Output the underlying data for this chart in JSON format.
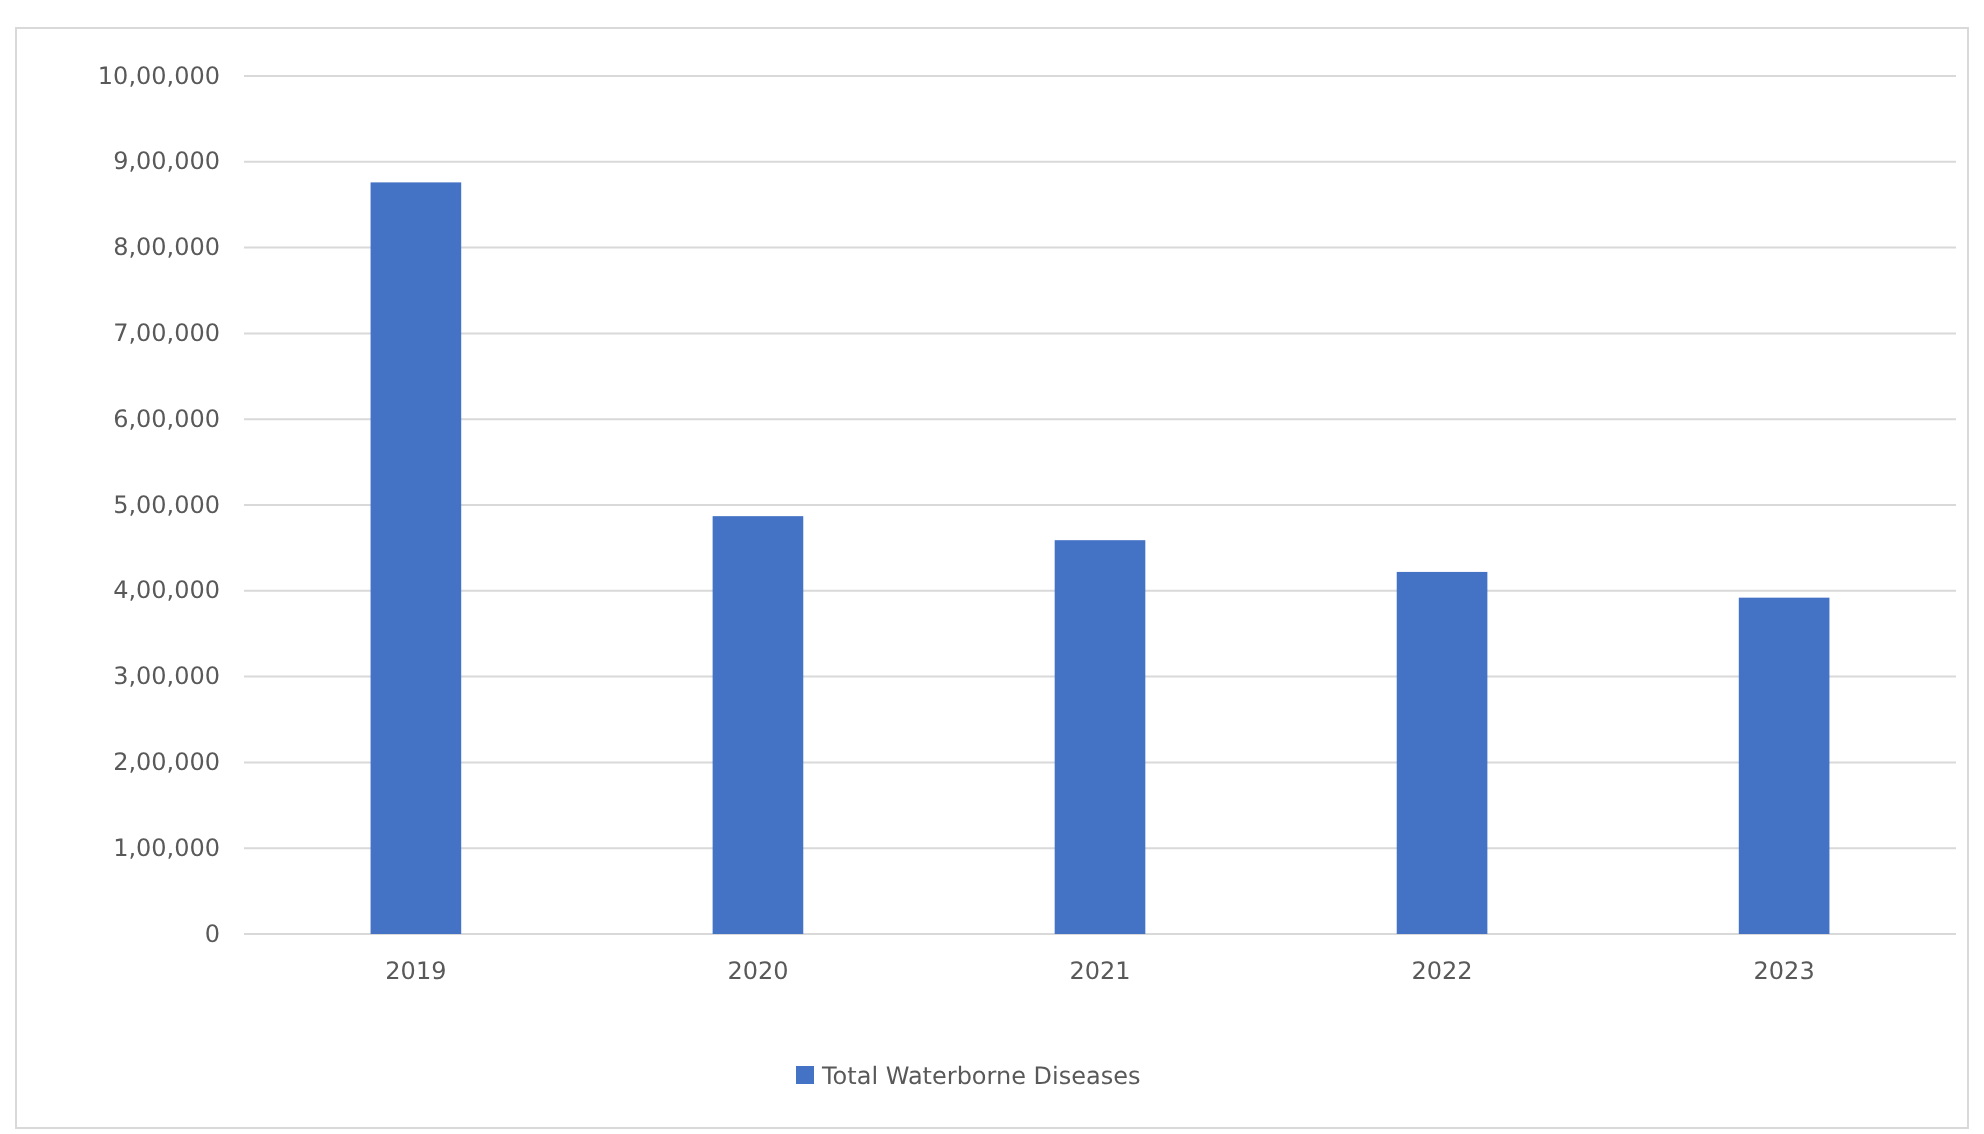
{
  "chart_data": {
    "type": "bar",
    "categories": [
      "2019",
      "2020",
      "2021",
      "2022",
      "2023"
    ],
    "series": [
      {
        "name": "Total Waterborne Diseases",
        "color": "#4472c4",
        "values": [
          876000,
          487000,
          459000,
          422000,
          392000
        ]
      }
    ],
    "ylim": [
      0,
      1000000
    ],
    "yticks": [
      0,
      {
        "value": 100000,
        "label": "1,00,000"
      },
      {
        "value": 200000,
        "label": "2,00,000"
      },
      {
        "value": 300000,
        "label": "3,00,000"
      },
      {
        "value": 400000,
        "label": "4,00,000"
      },
      {
        "value": 500000,
        "label": "5,00,000"
      },
      {
        "value": 600000,
        "label": "6,00,000"
      },
      {
        "value": 700000,
        "label": "7,00,000"
      },
      {
        "value": 800000,
        "label": "8,00,000"
      },
      {
        "value": 900000,
        "label": "9,00,000"
      },
      {
        "value": 1000000,
        "label": "10,00,000"
      }
    ],
    "grid": "y",
    "legend": "bottom"
  }
}
